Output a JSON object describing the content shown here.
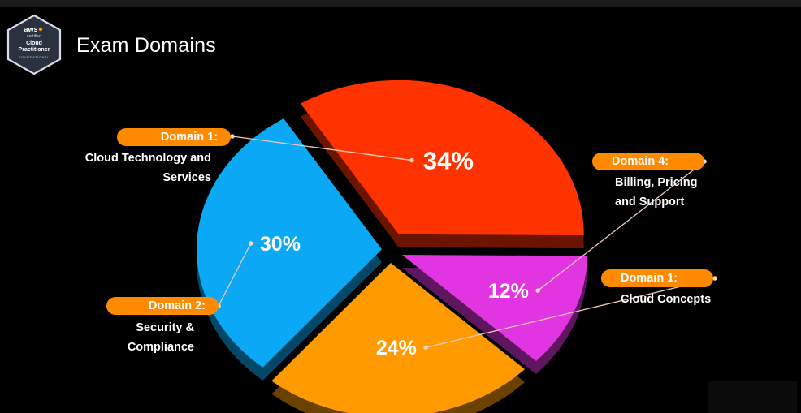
{
  "title": "Exam Domains",
  "badge": {
    "brand": "aws",
    "sub": "certified",
    "line1": "Cloud",
    "line2": "Practitioner",
    "level": "FOUNDATIONAL"
  },
  "chart_data": {
    "type": "pie",
    "title": "Exam Domains",
    "slices": [
      {
        "label": "Domain 1:",
        "description": "Cloud Technology and\nServices",
        "value": 34,
        "value_label": "34%",
        "color": "#ff3300"
      },
      {
        "label": "Domain 4:",
        "description": "Billing, Pricing\nand Support",
        "value": 12,
        "value_label": "12%",
        "color": "#e035e0"
      },
      {
        "label": "Domain 1:",
        "description": "Cloud Concepts",
        "value": 24,
        "value_label": "24%",
        "color": "#ff9a00"
      },
      {
        "label": "Domain 2:",
        "description": "Security &\nCompliance",
        "value": 30,
        "value_label": "30%",
        "color": "#0aa8f5"
      }
    ]
  }
}
